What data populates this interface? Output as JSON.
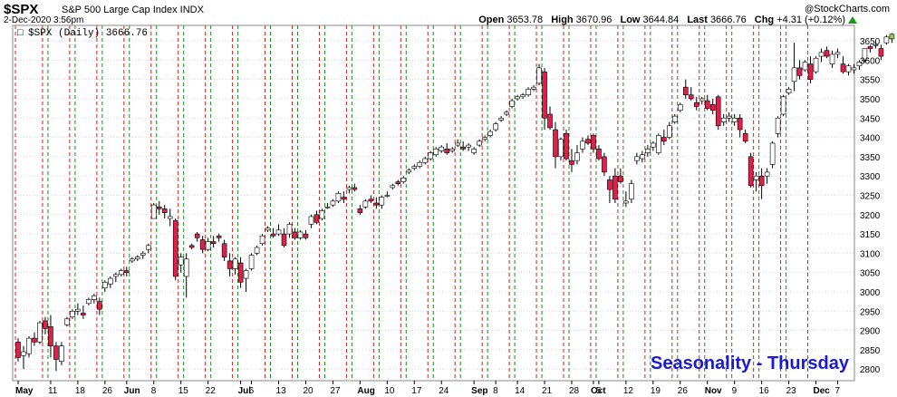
{
  "header": {
    "symbol": "$SPX",
    "description": "S&P 500 Large Cap Index INDX",
    "datetime": "2-Dec-2020 3:56pm",
    "credit_copy": "@",
    "credit": "StockCharts.com",
    "open_label": "Open",
    "open": "3653.78",
    "high_label": "High",
    "high": "3670.96",
    "low_label": "Low",
    "low": "3644.84",
    "last_label": "Last",
    "last": "3666.76",
    "chg_label": "Chg",
    "chg": "+4.31 (+0.12%)"
  },
  "legend": {
    "marker": "□",
    "text": "$SPX (Daily) 3666.76"
  },
  "annotation": "Seasonality - Thursday",
  "colors": {
    "up_body": "#ffffff",
    "down_body": "#e0204a",
    "outline": "#000000",
    "red_line": "#d02020",
    "green_line": "#1a8a1a",
    "grid": "#d8d8d8",
    "last_bar": "#90d060"
  },
  "chart_data": {
    "type": "candlestick",
    "ylim": [
      2770,
      3690
    ],
    "y_ticks": [
      2800,
      2850,
      2900,
      2950,
      3000,
      3050,
      3100,
      3150,
      3200,
      3250,
      3300,
      3350,
      3400,
      3450,
      3500,
      3550,
      3600,
      3650
    ],
    "x_tick_labels": [
      {
        "label": "May",
        "bold": true,
        "idx": 0
      },
      {
        "label": "11",
        "bold": false,
        "idx": 6
      },
      {
        "label": "18",
        "bold": false,
        "idx": 11
      },
      {
        "label": "26",
        "bold": false,
        "idx": 16
      },
      {
        "label": "Jun",
        "bold": true,
        "idx": 20
      },
      {
        "label": "8",
        "bold": false,
        "idx": 25
      },
      {
        "label": "15",
        "bold": false,
        "idx": 30
      },
      {
        "label": "22",
        "bold": false,
        "idx": 35
      },
      {
        "label": "Jul",
        "bold": true,
        "idx": 41
      },
      {
        "label": "6",
        "bold": false,
        "idx": 43
      },
      {
        "label": "13",
        "bold": false,
        "idx": 48
      },
      {
        "label": "20",
        "bold": false,
        "idx": 53
      },
      {
        "label": "27",
        "bold": false,
        "idx": 58
      },
      {
        "label": "Aug",
        "bold": true,
        "idx": 63
      },
      {
        "label": "10",
        "bold": false,
        "idx": 68
      },
      {
        "label": "17",
        "bold": false,
        "idx": 73
      },
      {
        "label": "24",
        "bold": false,
        "idx": 78
      },
      {
        "label": "Sep",
        "bold": true,
        "idx": 84
      },
      {
        "label": "8",
        "bold": false,
        "idx": 88
      },
      {
        "label": "14",
        "bold": false,
        "idx": 92
      },
      {
        "label": "21",
        "bold": false,
        "idx": 97
      },
      {
        "label": "28",
        "bold": false,
        "idx": 102
      },
      {
        "label": "Oct",
        "bold": true,
        "idx": 106
      },
      {
        "label": "5",
        "bold": false,
        "idx": 107
      },
      {
        "label": "12",
        "bold": false,
        "idx": 112
      },
      {
        "label": "19",
        "bold": false,
        "idx": 117
      },
      {
        "label": "26",
        "bold": false,
        "idx": 122
      },
      {
        "label": "Nov",
        "bold": true,
        "idx": 127
      },
      {
        "label": "9",
        "bold": false,
        "idx": 132
      },
      {
        "label": "16",
        "bold": false,
        "idx": 137
      },
      {
        "label": "23",
        "bold": false,
        "idx": 142
      },
      {
        "label": "Dec",
        "bold": true,
        "idx": 147
      },
      {
        "label": "7",
        "bold": false,
        "idx": 151
      }
    ],
    "wednesday_idx": [
      -1,
      4,
      9,
      14,
      19,
      24,
      29,
      34,
      39,
      45,
      50,
      55,
      60,
      65,
      70,
      75,
      80,
      85,
      90,
      95,
      100,
      105,
      110,
      115,
      120,
      125,
      130,
      135,
      140,
      145
    ],
    "thursday_idx": [
      5,
      10,
      15,
      20,
      25,
      30,
      35,
      40,
      46,
      51,
      56,
      61,
      66,
      71,
      76,
      81,
      86,
      91,
      96,
      101,
      106,
      111,
      116,
      121,
      126,
      131,
      136,
      141
    ],
    "candles": [
      [
        2870,
        2880,
        2820,
        2830
      ],
      [
        2835,
        2860,
        2800,
        2845
      ],
      [
        2840,
        2885,
        2830,
        2880
      ],
      [
        2880,
        2895,
        2860,
        2870
      ],
      [
        2870,
        2925,
        2865,
        2920
      ],
      [
        2925,
        2935,
        2890,
        2905
      ],
      [
        2910,
        2940,
        2830,
        2860
      ],
      [
        2860,
        2870,
        2795,
        2825
      ],
      [
        2820,
        2870,
        2810,
        2860
      ],
      [
        2915,
        2935,
        2910,
        2930
      ],
      [
        2935,
        2955,
        2930,
        2950
      ],
      [
        2950,
        2970,
        2940,
        2955
      ],
      [
        2945,
        2965,
        2930,
        2940
      ],
      [
        2970,
        2985,
        2965,
        2980
      ],
      [
        2980,
        2995,
        2970,
        2990
      ],
      [
        2975,
        2985,
        2940,
        2955
      ],
      [
        3010,
        3030,
        3000,
        3025
      ],
      [
        3020,
        3040,
        3010,
        3035
      ],
      [
        3040,
        3050,
        3025,
        3045
      ],
      [
        3045,
        3060,
        3040,
        3055
      ],
      [
        3055,
        3065,
        3040,
        3050
      ],
      [
        3080,
        3090,
        3075,
        3085
      ],
      [
        3085,
        3095,
        3080,
        3090
      ],
      [
        3095,
        3105,
        3085,
        3100
      ],
      [
        3110,
        3125,
        3100,
        3120
      ],
      [
        3190,
        3230,
        3190,
        3225
      ],
      [
        3220,
        3235,
        3200,
        3215
      ],
      [
        3215,
        3225,
        3190,
        3205
      ],
      [
        3190,
        3215,
        3170,
        3195
      ],
      [
        3185,
        3190,
        3030,
        3040
      ],
      [
        3070,
        3100,
        3050,
        3090
      ],
      [
        3040,
        3100,
        2985,
        3085
      ],
      [
        3120,
        3125,
        3110,
        3115
      ],
      [
        3150,
        3155,
        3130,
        3140
      ],
      [
        3135,
        3145,
        3100,
        3110
      ],
      [
        3110,
        3140,
        3105,
        3130
      ],
      [
        3130,
        3145,
        3115,
        3125
      ],
      [
        3145,
        3150,
        3130,
        3140
      ],
      [
        3125,
        3135,
        3080,
        3090
      ],
      [
        3080,
        3100,
        3040,
        3060
      ],
      [
        3060,
        3090,
        3045,
        3085
      ],
      [
        3075,
        3090,
        3010,
        3025
      ],
      [
        3035,
        3060,
        3000,
        3055
      ],
      [
        3060,
        3100,
        3055,
        3095
      ],
      [
        3100,
        3120,
        3095,
        3115
      ],
      [
        3125,
        3150,
        3120,
        3145
      ],
      [
        3160,
        3170,
        3155,
        3165
      ],
      [
        3150,
        3165,
        3140,
        3145
      ],
      [
        3150,
        3175,
        3145,
        3160
      ],
      [
        3150,
        3165,
        3115,
        3120
      ],
      [
        3150,
        3180,
        3140,
        3175
      ],
      [
        3155,
        3165,
        3135,
        3140
      ],
      [
        3140,
        3160,
        3135,
        3155
      ],
      [
        3150,
        3160,
        3135,
        3140
      ],
      [
        3175,
        3200,
        3165,
        3195
      ],
      [
        3200,
        3210,
        3175,
        3180
      ],
      [
        3190,
        3215,
        3185,
        3210
      ],
      [
        3220,
        3230,
        3215,
        3220
      ],
      [
        3225,
        3240,
        3220,
        3235
      ],
      [
        3235,
        3260,
        3230,
        3255
      ],
      [
        3245,
        3260,
        3230,
        3240
      ],
      [
        3265,
        3275,
        3255,
        3270
      ],
      [
        3270,
        3280,
        3260,
        3265
      ],
      [
        3215,
        3225,
        3200,
        3205
      ],
      [
        3220,
        3240,
        3215,
        3235
      ],
      [
        3240,
        3250,
        3230,
        3235
      ],
      [
        3230,
        3245,
        3215,
        3225
      ],
      [
        3225,
        3250,
        3215,
        3245
      ],
      [
        3250,
        3260,
        3245,
        3250
      ],
      [
        3270,
        3280,
        3265,
        3275
      ],
      [
        3285,
        3290,
        3275,
        3280
      ],
      [
        3285,
        3300,
        3280,
        3295
      ],
      [
        3310,
        3320,
        3305,
        3315
      ],
      [
        3320,
        3330,
        3315,
        3325
      ],
      [
        3325,
        3340,
        3320,
        3335
      ],
      [
        3335,
        3350,
        3330,
        3345
      ],
      [
        3345,
        3365,
        3340,
        3360
      ],
      [
        3355,
        3375,
        3350,
        3370
      ],
      [
        3365,
        3380,
        3360,
        3375
      ],
      [
        3370,
        3385,
        3355,
        3360
      ],
      [
        3365,
        3375,
        3360,
        3370
      ],
      [
        3380,
        3395,
        3375,
        3385
      ],
      [
        3375,
        3390,
        3365,
        3370
      ],
      [
        3375,
        3385,
        3365,
        3380
      ],
      [
        3360,
        3375,
        3355,
        3370
      ],
      [
        3380,
        3395,
        3375,
        3390
      ],
      [
        3395,
        3405,
        3390,
        3400
      ],
      [
        3405,
        3420,
        3400,
        3415
      ],
      [
        3420,
        3440,
        3415,
        3435
      ],
      [
        3445,
        3455,
        3440,
        3450
      ],
      [
        3460,
        3470,
        3455,
        3465
      ],
      [
        3480,
        3500,
        3475,
        3495
      ],
      [
        3500,
        3510,
        3495,
        3505
      ],
      [
        3505,
        3515,
        3500,
        3510
      ],
      [
        3510,
        3530,
        3505,
        3525
      ],
      [
        3525,
        3535,
        3520,
        3530
      ],
      [
        3540,
        3590,
        3535,
        3580
      ],
      [
        3570,
        3580,
        3420,
        3450
      ],
      [
        3460,
        3480,
        3420,
        3425
      ],
      [
        3420,
        3440,
        3320,
        3350
      ],
      [
        3350,
        3400,
        3340,
        3395
      ],
      [
        3410,
        3420,
        3340,
        3345
      ],
      [
        3340,
        3370,
        3310,
        3330
      ],
      [
        3340,
        3380,
        3330,
        3360
      ],
      [
        3370,
        3400,
        3360,
        3390
      ],
      [
        3395,
        3405,
        3380,
        3385
      ],
      [
        3405,
        3410,
        3360,
        3370
      ],
      [
        3370,
        3380,
        3340,
        3345
      ],
      [
        3350,
        3360,
        3300,
        3310
      ],
      [
        3290,
        3300,
        3230,
        3265
      ],
      [
        3300,
        3320,
        3230,
        3240
      ],
      [
        3300,
        3320,
        3280,
        3285
      ],
      [
        3230,
        3260,
        3220,
        3235
      ],
      [
        3240,
        3290,
        3230,
        3280
      ],
      [
        3340,
        3360,
        3330,
        3350
      ],
      [
        3345,
        3365,
        3335,
        3355
      ],
      [
        3360,
        3380,
        3350,
        3370
      ],
      [
        3375,
        3390,
        3365,
        3385
      ],
      [
        3360,
        3410,
        3355,
        3405
      ],
      [
        3400,
        3420,
        3380,
        3390
      ],
      [
        3400,
        3440,
        3395,
        3430
      ],
      [
        3440,
        3460,
        3435,
        3455
      ],
      [
        3470,
        3490,
        3465,
        3485
      ],
      [
        3530,
        3550,
        3500,
        3510
      ],
      [
        3510,
        3530,
        3495,
        3500
      ],
      [
        3490,
        3505,
        3470,
        3480
      ],
      [
        3495,
        3505,
        3485,
        3500
      ],
      [
        3495,
        3510,
        3470,
        3475
      ],
      [
        3485,
        3500,
        3460,
        3470
      ],
      [
        3505,
        3510,
        3420,
        3430
      ],
      [
        3440,
        3460,
        3430,
        3450
      ],
      [
        3450,
        3465,
        3440,
        3455
      ],
      [
        3440,
        3460,
        3430,
        3450
      ],
      [
        3450,
        3460,
        3400,
        3420
      ],
      [
        3410,
        3420,
        3385,
        3390
      ],
      [
        3350,
        3360,
        3270,
        3275
      ],
      [
        3290,
        3310,
        3260,
        3300
      ],
      [
        3300,
        3320,
        3240,
        3275
      ],
      [
        3300,
        3320,
        3280,
        3310
      ],
      [
        3330,
        3390,
        3320,
        3385
      ],
      [
        3410,
        3455,
        3400,
        3450
      ],
      [
        3460,
        3510,
        3455,
        3505
      ],
      [
        3515,
        3530,
        3510,
        3525
      ],
      [
        3545,
        3645,
        3520,
        3580
      ],
      [
        3580,
        3600,
        3550,
        3560
      ],
      [
        3575,
        3600,
        3570,
        3595
      ],
      [
        3590,
        3610,
        3540,
        3550
      ],
      [
        3570,
        3610,
        3565,
        3605
      ],
      [
        3610,
        3630,
        3595,
        3620
      ],
      [
        3625,
        3635,
        3605,
        3610
      ],
      [
        3590,
        3625,
        3580,
        3615
      ],
      [
        3615,
        3630,
        3605,
        3620
      ],
      [
        3590,
        3610,
        3565,
        3570
      ],
      [
        3570,
        3590,
        3560,
        3585
      ],
      [
        3575,
        3590,
        3565,
        3580
      ],
      [
        3585,
        3600,
        3575,
        3595
      ],
      [
        3600,
        3630,
        3595,
        3630
      ],
      [
        3635,
        3640,
        3620,
        3630
      ],
      [
        3640,
        3650,
        3630,
        3640
      ],
      [
        3630,
        3640,
        3600,
        3610
      ],
      [
        3645,
        3665,
        3640,
        3660
      ],
      [
        3655,
        3670,
        3645,
        3667
      ]
    ]
  }
}
